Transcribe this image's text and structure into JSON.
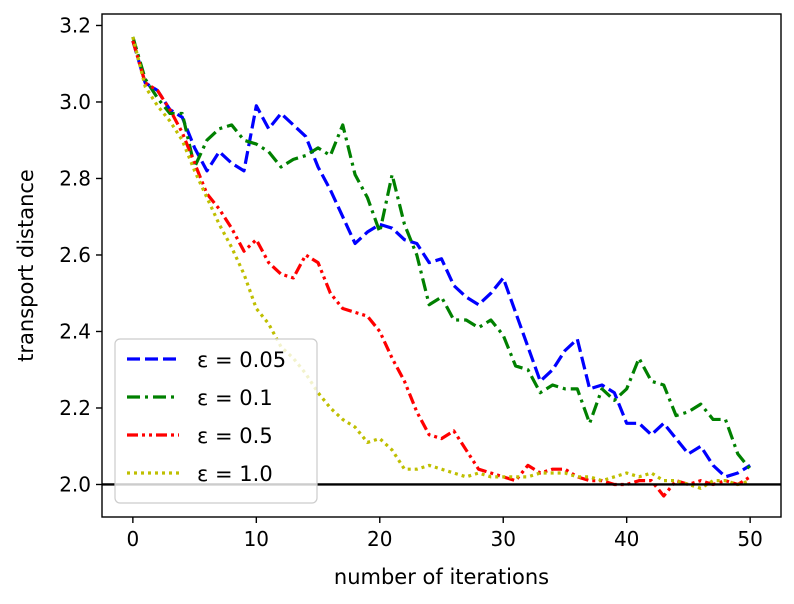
{
  "chart_data": {
    "type": "line",
    "title": "",
    "xlabel": "number of iterations",
    "ylabel": "transport distance",
    "xlim": [
      -2.5,
      52.5
    ],
    "ylim": [
      1.915,
      3.23
    ],
    "xticks": [
      0,
      10,
      20,
      30,
      40,
      50
    ],
    "yticks": [
      2.0,
      2.2,
      2.4,
      2.6,
      2.8,
      3.0,
      3.2
    ],
    "xtick_labels": [
      "0",
      "10",
      "20",
      "30",
      "40",
      "50"
    ],
    "ytick_labels": [
      "2.0",
      "2.2",
      "2.4",
      "2.6",
      "2.8",
      "3.0",
      "3.2"
    ],
    "grid": false,
    "legend_position": "lower-left",
    "reference_line": {
      "y": 2.0,
      "color": "#000000"
    },
    "x": [
      0,
      1,
      2,
      3,
      4,
      5,
      6,
      7,
      8,
      9,
      10,
      11,
      12,
      13,
      14,
      15,
      16,
      17,
      18,
      19,
      20,
      21,
      22,
      23,
      24,
      25,
      26,
      27,
      28,
      29,
      30,
      31,
      32,
      33,
      34,
      35,
      36,
      37,
      38,
      39,
      40,
      41,
      42,
      43,
      44,
      45,
      46,
      47,
      48,
      49,
      50
    ],
    "series": [
      {
        "name": "ε = 0.05",
        "legend_label": "ε = 0.05",
        "color": "#0000ff",
        "style": "dashed",
        "values": [
          3.16,
          3.05,
          3.03,
          2.98,
          2.96,
          2.88,
          2.82,
          2.87,
          2.84,
          2.82,
          2.99,
          2.93,
          2.97,
          2.94,
          2.91,
          2.83,
          2.77,
          2.7,
          2.63,
          2.66,
          2.68,
          2.67,
          2.64,
          2.63,
          2.58,
          2.59,
          2.52,
          2.49,
          2.47,
          2.5,
          2.54,
          2.45,
          2.36,
          2.27,
          2.3,
          2.35,
          2.38,
          2.25,
          2.26,
          2.24,
          2.16,
          2.16,
          2.13,
          2.16,
          2.12,
          2.08,
          2.1,
          2.05,
          2.02,
          2.03,
          2.05
        ]
      },
      {
        "name": "ε = 0.1",
        "legend_label": "ε = 0.1",
        "color": "#008000",
        "style": "dashdot",
        "values": [
          3.17,
          3.06,
          3.01,
          2.97,
          2.97,
          2.83,
          2.9,
          2.93,
          2.94,
          2.9,
          2.89,
          2.87,
          2.83,
          2.85,
          2.86,
          2.88,
          2.86,
          2.94,
          2.81,
          2.75,
          2.66,
          2.81,
          2.68,
          2.6,
          2.47,
          2.49,
          2.43,
          2.43,
          2.41,
          2.43,
          2.39,
          2.31,
          2.3,
          2.24,
          2.26,
          2.25,
          2.25,
          2.16,
          2.25,
          2.22,
          2.25,
          2.33,
          2.27,
          2.26,
          2.18,
          2.19,
          2.21,
          2.17,
          2.17,
          2.08,
          2.04
        ]
      },
      {
        "name": "ε = 0.5",
        "legend_label": "ε = 0.5",
        "color": "#ff0000",
        "style": "dashdotdot",
        "values": [
          3.16,
          3.05,
          3.03,
          2.98,
          2.92,
          2.84,
          2.76,
          2.72,
          2.67,
          2.61,
          2.64,
          2.58,
          2.55,
          2.54,
          2.6,
          2.58,
          2.5,
          2.46,
          2.45,
          2.44,
          2.4,
          2.33,
          2.27,
          2.19,
          2.13,
          2.12,
          2.14,
          2.09,
          2.04,
          2.03,
          2.02,
          2.01,
          2.05,
          2.03,
          2.04,
          2.04,
          2.02,
          2.01,
          2.01,
          2.0,
          2.0,
          2.01,
          2.01,
          1.97,
          2.01,
          2.0,
          2.01,
          2.0,
          2.01,
          2.0,
          2.02
        ]
      },
      {
        "name": "ε = 1.0",
        "legend_label": "ε = 1.0",
        "color": "#bfbf00",
        "style": "dotted",
        "values": [
          3.17,
          3.04,
          2.99,
          2.95,
          2.9,
          2.82,
          2.75,
          2.68,
          2.62,
          2.55,
          2.46,
          2.42,
          2.36,
          2.33,
          2.29,
          2.24,
          2.2,
          2.17,
          2.15,
          2.11,
          2.12,
          2.09,
          2.04,
          2.04,
          2.05,
          2.04,
          2.03,
          2.02,
          2.03,
          2.02,
          2.02,
          2.02,
          2.02,
          2.03,
          2.03,
          2.03,
          2.02,
          2.02,
          2.01,
          2.02,
          2.03,
          2.02,
          2.03,
          2.01,
          2.01,
          2.0,
          1.99,
          2.01,
          2.01,
          2.0,
          2.01
        ]
      }
    ]
  }
}
